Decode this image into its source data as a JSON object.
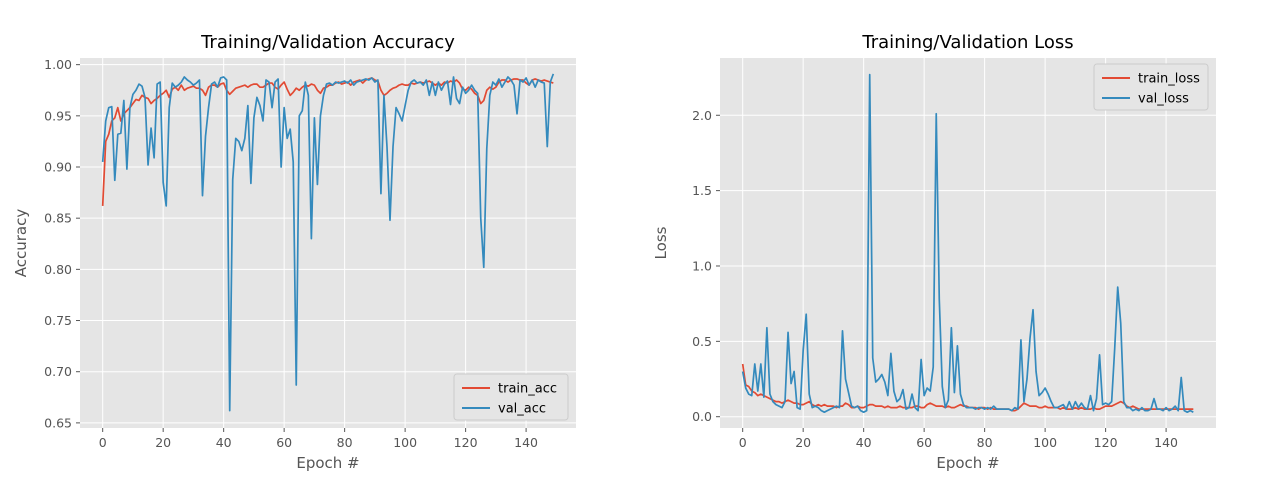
{
  "chart_data": [
    {
      "type": "line",
      "title": "Training/Validation Accuracy",
      "xlabel": "Epoch #",
      "ylabel": "Accuracy",
      "xlim": [
        -7.5,
        156.5
      ],
      "ylim": [
        0.645,
        1.0065
      ],
      "xticks": [
        0,
        20,
        40,
        60,
        80,
        100,
        120,
        140
      ],
      "yticks": [
        0.65,
        0.7,
        0.75,
        0.8,
        0.85,
        0.9,
        0.95,
        1.0
      ],
      "ytick_decimals": 2,
      "grid": true,
      "legend_position": "lower-right",
      "series": [
        {
          "name": "train_acc",
          "color": "#E24A33",
          "values": [
            0.862,
            0.925,
            0.932,
            0.945,
            0.948,
            0.958,
            0.945,
            0.952,
            0.955,
            0.958,
            0.962,
            0.966,
            0.965,
            0.97,
            0.968,
            0.967,
            0.962,
            0.965,
            0.967,
            0.97,
            0.972,
            0.975,
            0.968,
            0.976,
            0.978,
            0.975,
            0.98,
            0.975,
            0.977,
            0.978,
            0.979,
            0.977,
            0.977,
            0.975,
            0.97,
            0.978,
            0.98,
            0.98,
            0.978,
            0.981,
            0.982,
            0.975,
            0.971,
            0.974,
            0.977,
            0.978,
            0.979,
            0.98,
            0.978,
            0.98,
            0.981,
            0.981,
            0.978,
            0.978,
            0.98,
            0.982,
            0.982,
            0.978,
            0.976,
            0.98,
            0.983,
            0.976,
            0.97,
            0.973,
            0.977,
            0.975,
            0.978,
            0.98,
            0.979,
            0.981,
            0.98,
            0.975,
            0.972,
            0.977,
            0.978,
            0.98,
            0.98,
            0.982,
            0.983,
            0.981,
            0.982,
            0.983,
            0.98,
            0.983,
            0.984,
            0.985,
            0.982,
            0.985,
            0.986,
            0.987,
            0.985,
            0.984,
            0.975,
            0.97,
            0.972,
            0.975,
            0.977,
            0.978,
            0.98,
            0.981,
            0.98,
            0.98,
            0.982,
            0.981,
            0.982,
            0.983,
            0.982,
            0.983,
            0.984,
            0.982,
            0.98,
            0.982,
            0.98,
            0.983,
            0.982,
            0.984,
            0.983,
            0.985,
            0.982,
            0.976,
            0.975,
            0.978,
            0.976,
            0.972,
            0.97,
            0.962,
            0.965,
            0.975,
            0.978,
            0.976,
            0.978,
            0.983,
            0.985,
            0.985,
            0.983,
            0.985,
            0.986,
            0.986,
            0.985,
            0.985,
            0.982,
            0.98,
            0.985,
            0.986,
            0.985,
            0.984,
            0.985,
            0.984,
            0.983,
            0.982
          ]
        },
        {
          "name": "val_acc",
          "color": "#348ABD",
          "values": [
            0.905,
            0.945,
            0.958,
            0.959,
            0.887,
            0.932,
            0.933,
            0.965,
            0.898,
            0.958,
            0.971,
            0.975,
            0.981,
            0.979,
            0.968,
            0.902,
            0.938,
            0.909,
            0.981,
            0.983,
            0.885,
            0.862,
            0.958,
            0.982,
            0.978,
            0.98,
            0.983,
            0.988,
            0.985,
            0.983,
            0.98,
            0.982,
            0.985,
            0.872,
            0.93,
            0.958,
            0.981,
            0.983,
            0.978,
            0.987,
            0.988,
            0.985,
            0.662,
            0.888,
            0.928,
            0.925,
            0.916,
            0.928,
            0.96,
            0.884,
            0.948,
            0.968,
            0.96,
            0.945,
            0.985,
            0.983,
            0.958,
            0.983,
            0.986,
            0.9,
            0.958,
            0.928,
            0.937,
            0.905,
            0.687,
            0.95,
            0.955,
            0.983,
            0.97,
            0.83,
            0.948,
            0.883,
            0.95,
            0.97,
            0.981,
            0.982,
            0.98,
            0.983,
            0.982,
            0.983,
            0.984,
            0.982,
            0.985,
            0.98,
            0.983,
            0.984,
            0.985,
            0.986,
            0.985,
            0.987,
            0.983,
            0.985,
            0.874,
            0.97,
            0.92,
            0.848,
            0.92,
            0.958,
            0.952,
            0.945,
            0.96,
            0.975,
            0.983,
            0.985,
            0.982,
            0.983,
            0.98,
            0.985,
            0.97,
            0.983,
            0.97,
            0.983,
            0.975,
            0.981,
            0.984,
            0.961,
            0.988,
            0.967,
            0.962,
            0.978,
            0.972,
            0.975,
            0.98,
            0.975,
            0.972,
            0.85,
            0.802,
            0.918,
            0.97,
            0.983,
            0.98,
            0.986,
            0.978,
            0.983,
            0.988,
            0.985,
            0.98,
            0.952,
            0.985,
            0.983,
            0.987,
            0.98,
            0.985,
            0.978,
            0.985,
            0.983,
            0.982,
            0.92,
            0.983,
            0.991
          ]
        }
      ]
    },
    {
      "type": "line",
      "title": "Training/Validation Loss",
      "xlabel": "Epoch #",
      "ylabel": "Loss",
      "xlim": [
        -7.5,
        156.5
      ],
      "ylim": [
        -0.075,
        2.38
      ],
      "xticks": [
        0,
        20,
        40,
        60,
        80,
        100,
        120,
        140
      ],
      "yticks": [
        0.0,
        0.5,
        1.0,
        1.5,
        2.0
      ],
      "ytick_decimals": 1,
      "grid": true,
      "legend_position": "upper-right",
      "series": [
        {
          "name": "train_loss",
          "color": "#E24A33",
          "values": [
            0.35,
            0.21,
            0.2,
            0.17,
            0.16,
            0.14,
            0.15,
            0.14,
            0.13,
            0.12,
            0.11,
            0.1,
            0.1,
            0.09,
            0.1,
            0.11,
            0.1,
            0.09,
            0.09,
            0.08,
            0.08,
            0.09,
            0.1,
            0.08,
            0.07,
            0.08,
            0.07,
            0.08,
            0.07,
            0.07,
            0.07,
            0.06,
            0.07,
            0.07,
            0.09,
            0.08,
            0.06,
            0.06,
            0.07,
            0.06,
            0.06,
            0.07,
            0.08,
            0.08,
            0.07,
            0.07,
            0.07,
            0.06,
            0.07,
            0.06,
            0.06,
            0.06,
            0.07,
            0.06,
            0.06,
            0.06,
            0.06,
            0.07,
            0.07,
            0.06,
            0.06,
            0.08,
            0.09,
            0.08,
            0.07,
            0.07,
            0.07,
            0.06,
            0.07,
            0.06,
            0.06,
            0.07,
            0.08,
            0.07,
            0.07,
            0.06,
            0.06,
            0.06,
            0.05,
            0.06,
            0.06,
            0.05,
            0.06,
            0.05,
            0.05,
            0.05,
            0.05,
            0.05,
            0.05,
            0.04,
            0.04,
            0.05,
            0.07,
            0.09,
            0.08,
            0.07,
            0.07,
            0.07,
            0.06,
            0.06,
            0.07,
            0.06,
            0.06,
            0.06,
            0.06,
            0.05,
            0.06,
            0.05,
            0.05,
            0.05,
            0.06,
            0.05,
            0.06,
            0.05,
            0.05,
            0.05,
            0.06,
            0.05,
            0.05,
            0.06,
            0.07,
            0.07,
            0.07,
            0.08,
            0.09,
            0.1,
            0.09,
            0.07,
            0.06,
            0.07,
            0.06,
            0.05,
            0.05,
            0.05,
            0.05,
            0.05,
            0.05,
            0.05,
            0.05,
            0.05,
            0.05,
            0.05,
            0.05,
            0.05,
            0.05,
            0.05,
            0.05,
            0.05,
            0.05,
            0.05
          ]
        },
        {
          "name": "val_loss",
          "color": "#348ABD",
          "values": [
            0.3,
            0.19,
            0.15,
            0.14,
            0.35,
            0.17,
            0.35,
            0.13,
            0.59,
            0.15,
            0.1,
            0.08,
            0.07,
            0.06,
            0.1,
            0.56,
            0.22,
            0.3,
            0.06,
            0.05,
            0.44,
            0.68,
            0.15,
            0.06,
            0.07,
            0.06,
            0.04,
            0.03,
            0.04,
            0.05,
            0.06,
            0.07,
            0.06,
            0.57,
            0.25,
            0.16,
            0.07,
            0.06,
            0.07,
            0.04,
            0.03,
            0.04,
            2.27,
            0.39,
            0.23,
            0.25,
            0.28,
            0.23,
            0.14,
            0.42,
            0.17,
            0.1,
            0.12,
            0.18,
            0.05,
            0.06,
            0.15,
            0.06,
            0.04,
            0.38,
            0.14,
            0.19,
            0.17,
            0.33,
            2.01,
            0.78,
            0.2,
            0.06,
            0.11,
            0.59,
            0.16,
            0.47,
            0.15,
            0.08,
            0.06,
            0.06,
            0.06,
            0.05,
            0.06,
            0.06,
            0.05,
            0.06,
            0.05,
            0.07,
            0.05,
            0.05,
            0.05,
            0.05,
            0.05,
            0.04,
            0.06,
            0.05,
            0.51,
            0.1,
            0.25,
            0.52,
            0.71,
            0.3,
            0.14,
            0.16,
            0.19,
            0.15,
            0.1,
            0.06,
            0.06,
            0.07,
            0.08,
            0.05,
            0.1,
            0.05,
            0.1,
            0.06,
            0.09,
            0.06,
            0.05,
            0.14,
            0.04,
            0.12,
            0.41,
            0.08,
            0.09,
            0.08,
            0.1,
            0.45,
            0.86,
            0.62,
            0.1,
            0.06,
            0.06,
            0.04,
            0.05,
            0.04,
            0.06,
            0.04,
            0.04,
            0.05,
            0.12,
            0.05,
            0.05,
            0.04,
            0.06,
            0.04,
            0.05,
            0.07,
            0.04,
            0.26,
            0.04,
            0.03,
            0.04,
            0.03
          ]
        }
      ]
    }
  ]
}
